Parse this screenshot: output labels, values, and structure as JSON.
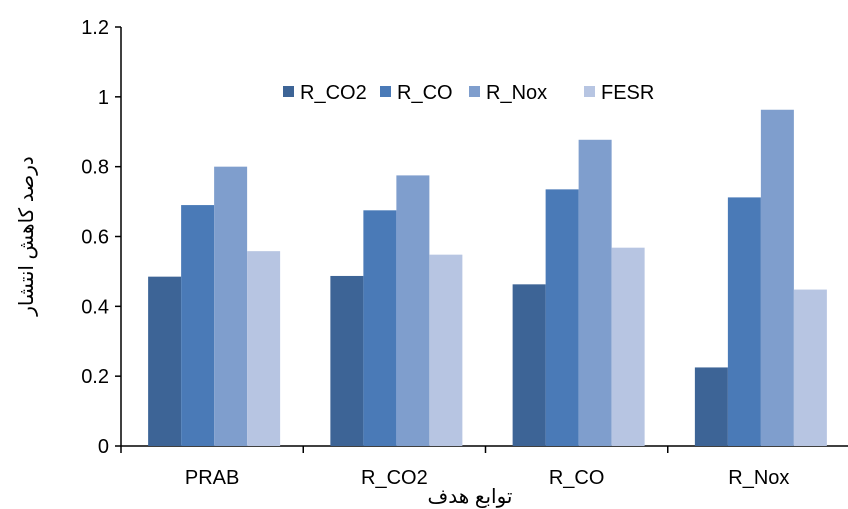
{
  "chart_data": {
    "type": "bar",
    "title": "",
    "xlabel": "توابع هدف",
    "ylabel": "درصد کاهش انتشار",
    "categories": [
      "PRAB",
      "R_CO2",
      "R_CO",
      "R_Nox"
    ],
    "series": [
      {
        "name": "R_CO2",
        "values": [
          0.485,
          0.487,
          0.463,
          0.225
        ],
        "color": "#3d6496"
      },
      {
        "name": "R_CO",
        "values": [
          0.69,
          0.675,
          0.735,
          0.712
        ],
        "color": "#4a7ab7"
      },
      {
        "name": "R_Nox",
        "values": [
          0.8,
          0.775,
          0.877,
          0.963
        ],
        "color": "#7f9ecd"
      },
      {
        "name": "FESR",
        "values": [
          0.558,
          0.548,
          0.568,
          0.448
        ],
        "color": "#b7c5e2"
      }
    ],
    "ylim": [
      0,
      1.2
    ],
    "yticks": [
      "0",
      "0.2",
      "0.4",
      "0.6",
      "0.8",
      "1",
      "1.2"
    ],
    "legend_position": "top",
    "grid": false
  }
}
